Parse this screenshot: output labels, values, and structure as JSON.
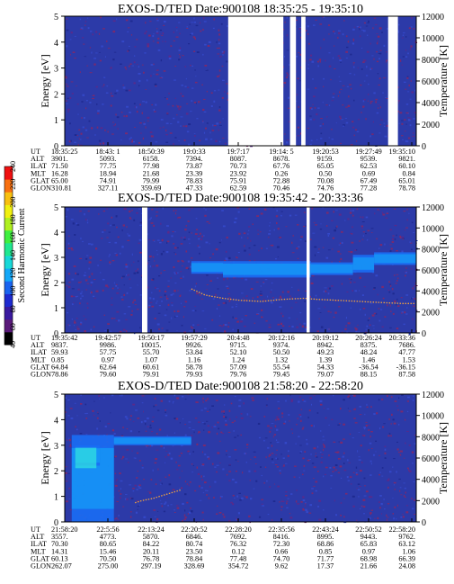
{
  "panels": [
    {
      "title": "EXOS-D/TED   Date:900108  18:35:25 - 19:35:10",
      "ylabel_left": "Energy [eV]",
      "ylabel_right": "Temperature [K]",
      "y_ticks_left": [
        "0",
        "1",
        "2",
        "3",
        "4",
        "5"
      ],
      "y_ticks_right": [
        "0",
        "2000",
        "4000",
        "6000",
        "8000",
        "10000",
        "12000"
      ],
      "orbit_rows": [
        {
          "label": "UT",
          "values": [
            "18:35:25",
            "18:43: 1",
            "18:50:39",
            "19:0:33",
            "19:7:17",
            "19:14: 5",
            "19:20:53",
            "19:27:49",
            "19:35:10"
          ]
        },
        {
          "label": "ALT",
          "values": [
            "3901.",
            "5093.",
            "6158.",
            "7394.",
            "8087.",
            "8678.",
            "9159.",
            "9539.",
            "9821."
          ]
        },
        {
          "label": "ILAT",
          "values": [
            "71.50",
            "77.75",
            "77.98",
            "73.87",
            "70.73",
            "67.76",
            "65.05",
            "62.53",
            "60.10"
          ]
        },
        {
          "label": "MLT",
          "values": [
            "16.28",
            "18.94",
            "21.68",
            "23.39",
            "23.92",
            "0.26",
            "0.50",
            "0.69",
            "0.84"
          ]
        },
        {
          "label": "GLAT",
          "values": [
            "65.00",
            "74.91",
            "79.99",
            "78.83",
            "75.91",
            "72.88",
            "70.08",
            "67.49",
            "65.01"
          ]
        },
        {
          "label": "GLON",
          "values": [
            "310.81",
            "327.11",
            "359.69",
            "47.33",
            "62.59",
            "70.46",
            "74.76",
            "77.28",
            "78.78"
          ]
        }
      ]
    },
    {
      "title": "EXOS-D/TED   Date:900108  19:35:42 - 20:33:36",
      "ylabel_left": "Energy [eV]",
      "ylabel_right": "Temperature [K]",
      "y_ticks_left": [
        "0",
        "1",
        "2",
        "3",
        "4",
        "5"
      ],
      "y_ticks_right": [
        "0",
        "2000",
        "4000",
        "6000",
        "8000",
        "10000",
        "12000"
      ],
      "orbit_rows": [
        {
          "label": "UT",
          "values": [
            "19:35:42",
            "19:42:57",
            "19:50:17",
            "19:57:29",
            "20:4:48",
            "20:12:16",
            "20:19:12",
            "20:26:24",
            "20:33:36"
          ]
        },
        {
          "label": "ALT",
          "values": [
            "9837.",
            "9986.",
            "10015.",
            "9926.",
            "9715.",
            "9374.",
            "8942.",
            "8375.",
            "7686."
          ]
        },
        {
          "label": "ILAT",
          "values": [
            "59.93",
            "57.75",
            "55.70",
            "53.84",
            "52.10",
            "50.50",
            "49.23",
            "48.24",
            "47.77"
          ]
        },
        {
          "label": "MLT",
          "values": [
            "0.85",
            "0.97",
            "1.07",
            "1.16",
            "1.24",
            "1.32",
            "1.39",
            "1.46",
            "1.53"
          ]
        },
        {
          "label": "GLAT",
          "values": [
            "64.84",
            "62.64",
            "60.61",
            "58.78",
            "57.09",
            "55.54",
            "54.33",
            "-36.54",
            "-36.15"
          ]
        },
        {
          "label": "GLON",
          "values": [
            "78.86",
            "79.60",
            "79.91",
            "79.93",
            "79.76",
            "79.45",
            "79.07",
            "88.15",
            "87.58"
          ]
        }
      ]
    },
    {
      "title": "EXOS-D/TED   Date:900108  21:58:20 - 22:58:20",
      "ylabel_left": "Energy [eV]",
      "ylabel_right": "Temperature [K]",
      "y_ticks_left": [
        "0",
        "1",
        "2",
        "3",
        "4",
        "5"
      ],
      "y_ticks_right": [
        "0",
        "2000",
        "4000",
        "6000",
        "8000",
        "10000",
        "12000"
      ],
      "orbit_rows": [
        {
          "label": "UT",
          "values": [
            "21:58:20",
            "22:5:56",
            "22:13:24",
            "22:20:52",
            "22:28:20",
            "22:35:56",
            "22:43:24",
            "22:50:52",
            "22:58:20"
          ]
        },
        {
          "label": "ALT",
          "values": [
            "3557.",
            "4773.",
            "5870.",
            "6846.",
            "7692.",
            "8416.",
            "8995.",
            "9443.",
            "9762."
          ]
        },
        {
          "label": "ILAT",
          "values": [
            "70.30",
            "80.65",
            "84.22",
            "80.74",
            "76.32",
            "72.30",
            "68.86",
            "65.83",
            "63.12"
          ]
        },
        {
          "label": "MLT",
          "values": [
            "14.31",
            "15.46",
            "20.11",
            "23.50",
            "0.12",
            "0.66",
            "0.85",
            "0.97",
            "1.06"
          ]
        },
        {
          "label": "GLAT",
          "values": [
            "60.13",
            "70.50",
            "76.78",
            "78.84",
            "77.48",
            "74.70",
            "71.77",
            "68.98",
            "66.39"
          ]
        },
        {
          "label": "GLON",
          "values": [
            "262.07",
            "275.00",
            "297.19",
            "328.69",
            "354.72",
            "9.62",
            "17.37",
            "21.66",
            "24.08"
          ]
        }
      ]
    }
  ],
  "colorbar": {
    "label": "Second Harmonic Current",
    "ticks": [
      "40",
      "60",
      "80",
      "100",
      "120",
      "140",
      "160",
      "180",
      "200",
      "220",
      "240"
    ],
    "colors": [
      "#000000",
      "#5a1a7a",
      "#3a1aa0",
      "#1e2ad0",
      "#1a64f0",
      "#14a8f8",
      "#18d8d8",
      "#20e890",
      "#40f040",
      "#b0f020",
      "#f0f010",
      "#f8c010",
      "#f87010",
      "#f01010"
    ]
  },
  "chart_data": [
    {
      "type": "heatmap",
      "title": "EXOS-D/TED   Date:900108  18:35:25 - 19:35:10",
      "xlabel": "UT",
      "ylabel": "Energy [eV]",
      "ylabel_right": "Temperature [K]",
      "x": [
        "18:35:25",
        "18:43: 1",
        "18:50:39",
        "19:0:33",
        "19:7:17",
        "19:14: 5",
        "19:20:53",
        "19:27:49",
        "19:35:10"
      ],
      "ylim": [
        0,
        5
      ],
      "ylim_right": [
        0,
        12000
      ],
      "data_gaps": [
        [
          0.465,
          0.622
        ],
        [
          0.641,
          0.658
        ],
        [
          0.673,
          0.685
        ],
        [
          0.92,
          0.948
        ]
      ],
      "temperature_trace": [],
      "dense_bands": []
    },
    {
      "type": "heatmap",
      "title": "EXOS-D/TED   Date:900108  19:35:42 - 20:33:36",
      "xlabel": "UT",
      "ylabel": "Energy [eV]",
      "ylabel_right": "Temperature [K]",
      "x": [
        "19:35:42",
        "19:42:57",
        "19:50:17",
        "19:57:29",
        "20:4:48",
        "20:12:16",
        "20:19:12",
        "20:26:24",
        "20:33:36"
      ],
      "ylim": [
        0,
        5
      ],
      "ylim_right": [
        0,
        12000
      ],
      "data_gaps": [
        [
          0.22,
          0.235
        ],
        [
          0.688,
          0.697
        ]
      ],
      "temperature_trace": [
        [
          0.36,
          4200
        ],
        [
          0.4,
          3600
        ],
        [
          0.45,
          3300
        ],
        [
          0.5,
          3100
        ],
        [
          0.56,
          3000
        ],
        [
          0.62,
          3200
        ],
        [
          0.68,
          3300
        ],
        [
          0.72,
          3200
        ],
        [
          0.78,
          3100
        ],
        [
          0.84,
          3000
        ],
        [
          0.9,
          2900
        ],
        [
          0.96,
          2800
        ],
        [
          1.0,
          2800
        ]
      ],
      "dense_bands": [
        {
          "t0": 0.36,
          "t1": 0.45,
          "e0": 2.35,
          "e1": 2.85
        },
        {
          "t0": 0.45,
          "t1": 0.7,
          "e0": 2.2,
          "e1": 2.85
        },
        {
          "t0": 0.7,
          "t1": 0.82,
          "e0": 2.3,
          "e1": 2.8
        },
        {
          "t0": 0.82,
          "t1": 0.88,
          "e0": 2.4,
          "e1": 3.1
        },
        {
          "t0": 0.88,
          "t1": 1.0,
          "e0": 2.7,
          "e1": 3.2
        }
      ]
    },
    {
      "type": "heatmap",
      "title": "EXOS-D/TED   Date:900108  21:58:20 - 22:58:20",
      "xlabel": "UT",
      "ylabel": "Energy [eV]",
      "ylabel_right": "Temperature [K]",
      "x": [
        "21:58:20",
        "22:5:56",
        "22:13:24",
        "22:20:52",
        "22:28:20",
        "22:35:56",
        "22:43:24",
        "22:50:52",
        "22:58:20"
      ],
      "ylim": [
        0,
        5
      ],
      "ylim_right": [
        0,
        12000
      ],
      "data_gaps": [],
      "temperature_trace": [
        [
          0.2,
          1800
        ],
        [
          0.22,
          2000
        ],
        [
          0.25,
          2200
        ],
        [
          0.28,
          2500
        ],
        [
          0.31,
          2800
        ],
        [
          0.33,
          3000
        ]
      ],
      "dense_bands": [
        {
          "t0": 0.02,
          "t1": 0.14,
          "e0": 0.0,
          "e1": 3.4
        },
        {
          "t0": 0.14,
          "t1": 0.36,
          "e0": 3.0,
          "e1": 3.35
        },
        {
          "t0": 0.03,
          "t1": 0.1,
          "e0": 2.2,
          "e1": 3.0
        }
      ]
    }
  ]
}
